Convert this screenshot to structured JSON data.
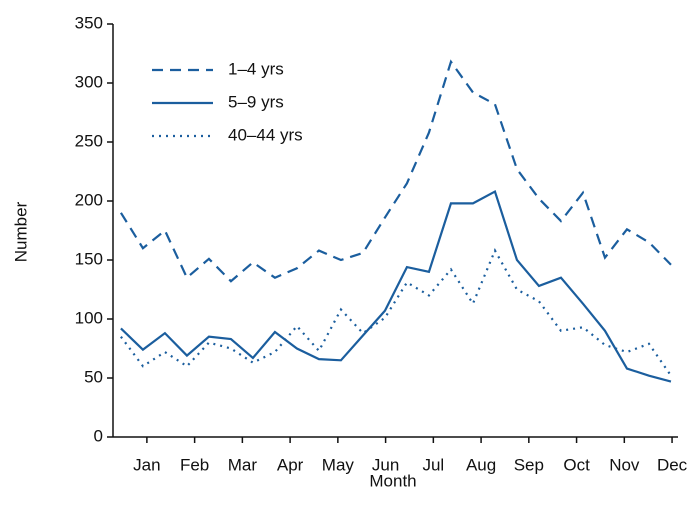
{
  "chart_data": {
    "type": "line",
    "x_label": "Month",
    "y_label": "Number",
    "x": [
      1,
      2,
      3,
      4,
      5,
      6,
      7,
      8,
      9,
      10,
      11,
      12,
      13,
      14,
      15,
      16,
      17,
      18,
      19,
      20,
      21,
      22,
      23,
      24,
      25,
      26
    ],
    "xlim": [
      0.64,
      26.32
    ],
    "xticks": [
      {
        "value": 2.18,
        "label": "Jan"
      },
      {
        "value": 4.35,
        "label": "Feb"
      },
      {
        "value": 6.52,
        "label": "Mar"
      },
      {
        "value": 8.69,
        "label": "Apr"
      },
      {
        "value": 10.86,
        "label": "May"
      },
      {
        "value": 13.03,
        "label": "Jun"
      },
      {
        "value": 15.2,
        "label": "Jul"
      },
      {
        "value": 17.37,
        "label": "Aug"
      },
      {
        "value": 19.54,
        "label": "Sep"
      },
      {
        "value": 21.71,
        "label": "Oct"
      },
      {
        "value": 23.88,
        "label": "Nov"
      },
      {
        "value": 26.05,
        "label": "Dec"
      }
    ],
    "ylim": [
      0,
      350
    ],
    "yticks": [
      0,
      50,
      100,
      150,
      200,
      250,
      300,
      350
    ],
    "series": [
      {
        "name": "1–4 yrs",
        "color": "#1b5e9e",
        "style": "dashed",
        "values": [
          190,
          160,
          175,
          135,
          151,
          132,
          148,
          135,
          143,
          158,
          150,
          156,
          186,
          215,
          258,
          318,
          292,
          282,
          227,
          202,
          183,
          207,
          152,
          176,
          165,
          146
        ]
      },
      {
        "name": "5–9 yrs",
        "color": "#1b5e9e",
        "style": "solid",
        "values": [
          92,
          74,
          88,
          69,
          85,
          83,
          67,
          89,
          75,
          66,
          65,
          86,
          107,
          144,
          140,
          198,
          198,
          208,
          150,
          128,
          135,
          113,
          90,
          58,
          52,
          47
        ]
      },
      {
        "name": "40–44 yrs",
        "color": "#1b5e9e",
        "style": "dotted",
        "values": [
          85,
          60,
          72,
          60,
          80,
          75,
          63,
          72,
          94,
          73,
          108,
          88,
          101,
          131,
          120,
          142,
          113,
          158,
          125,
          115,
          90,
          93,
          78,
          72,
          79,
          52
        ]
      }
    ]
  }
}
